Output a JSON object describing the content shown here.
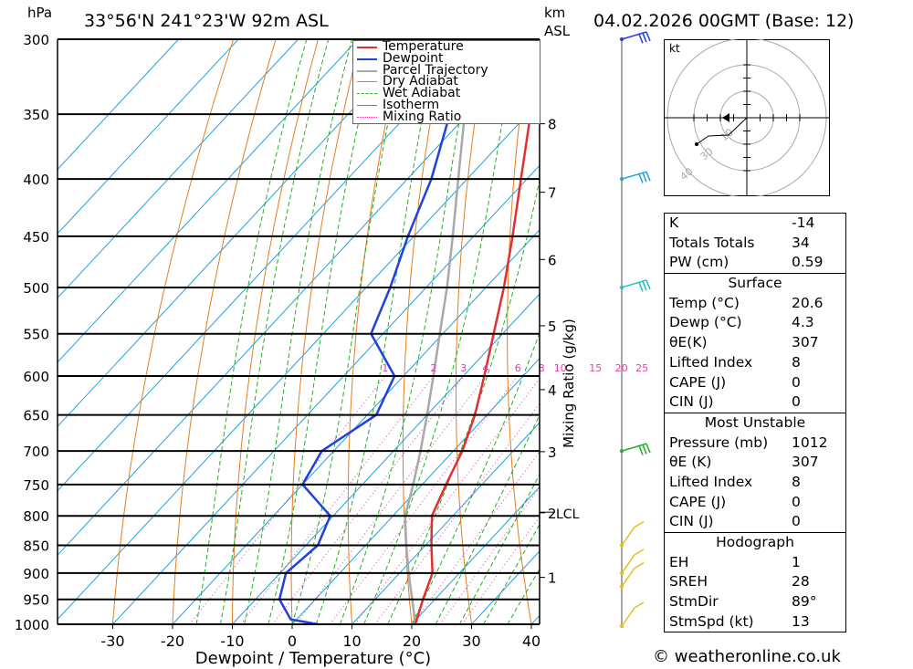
{
  "header": {
    "pressure_unit": "hPa",
    "location": "33°56'N  241°23'W  92m  ASL",
    "height_unit_line1": "km",
    "height_unit_line2": "ASL",
    "datetime": "04.02.2026  00GMT  (Base: 12)"
  },
  "chart_data": {
    "type": "line",
    "title": "33°56'N  241°23'W  92m  ASL",
    "xlabel": "Dewpoint / Temperature (°C)",
    "ylabel": "hPa",
    "right_label": "Mixing Ratio (g/kg)",
    "xlim": [
      -40,
      40
    ],
    "ylim": [
      1000,
      300
    ],
    "pressure_levels": [
      300,
      350,
      400,
      450,
      500,
      550,
      600,
      650,
      700,
      750,
      800,
      850,
      900,
      950,
      1000
    ],
    "x_ticks": [
      -30,
      -20,
      -10,
      0,
      10,
      20,
      30,
      40
    ],
    "height_km_ticks": [
      {
        "km": 1,
        "p": 908
      },
      {
        "km": 2,
        "p": 795
      },
      {
        "km": 3,
        "p": 701
      },
      {
        "km": 4,
        "p": 617
      },
      {
        "km": 5,
        "p": 541
      },
      {
        "km": 6,
        "p": 472
      },
      {
        "km": 7,
        "p": 411
      },
      {
        "km": 8,
        "p": 357
      }
    ],
    "lcl_label": "LCL",
    "lcl_pressure": 800,
    "mixing_ratio_labels": [
      "1",
      "2",
      "3",
      "4",
      "6",
      "8",
      "10",
      "15",
      "20",
      "25"
    ],
    "legend": [
      "Temperature",
      "Dewpoint",
      "Parcel Trajectory",
      "Dry Adiabat",
      "Wet Adiabat",
      "Isotherm",
      "Mixing Ratio"
    ],
    "series": [
      {
        "name": "Temperature",
        "color": "#e03030",
        "points": [
          [
            1000,
            20.6
          ],
          [
            950,
            18.0
          ],
          [
            900,
            15.5
          ],
          [
            850,
            11.0
          ],
          [
            800,
            6.5
          ],
          [
            750,
            4.0
          ],
          [
            700,
            1.5
          ],
          [
            650,
            -2.0
          ],
          [
            600,
            -6.5
          ],
          [
            550,
            -11.5
          ],
          [
            500,
            -17.0
          ],
          [
            450,
            -23.5
          ],
          [
            400,
            -31.0
          ],
          [
            350,
            -39.5
          ],
          [
            300,
            -48.5
          ]
        ]
      },
      {
        "name": "Dewpoint",
        "color": "#2040e0",
        "points": [
          [
            1000,
            4.3
          ],
          [
            990,
            -1.0
          ],
          [
            950,
            -6.0
          ],
          [
            900,
            -9.0
          ],
          [
            850,
            -8.0
          ],
          [
            800,
            -10.5
          ],
          [
            750,
            -20.0
          ],
          [
            700,
            -22.0
          ],
          [
            650,
            -18.5
          ],
          [
            600,
            -21.5
          ],
          [
            550,
            -32.0
          ],
          [
            500,
            -36.0
          ],
          [
            450,
            -41.0
          ],
          [
            400,
            -46.0
          ],
          [
            350,
            -53.0
          ],
          [
            300,
            -62.0
          ]
        ]
      },
      {
        "name": "Parcel Trajectory",
        "color": "#a8a8a8",
        "points": [
          [
            1000,
            20.6
          ],
          [
            950,
            16.2
          ],
          [
            900,
            11.5
          ],
          [
            850,
            6.8
          ],
          [
            800,
            2.0
          ],
          [
            750,
            -1.5
          ],
          [
            700,
            -5.5
          ],
          [
            650,
            -10.0
          ],
          [
            600,
            -15.0
          ],
          [
            550,
            -20.5
          ],
          [
            500,
            -26.5
          ],
          [
            450,
            -33.5
          ],
          [
            400,
            -41.5
          ],
          [
            350,
            -50.5
          ],
          [
            300,
            -60.0
          ]
        ]
      }
    ]
  },
  "hodograph": {
    "unit": "kt",
    "ring_labels": [
      "10",
      "20",
      "30",
      "40"
    ]
  },
  "indices": {
    "rows": [
      {
        "label": "K",
        "value": "-14"
      },
      {
        "label": "Totals Totals",
        "value": "34"
      },
      {
        "label": "PW (cm)",
        "value": "0.59"
      }
    ]
  },
  "surface": {
    "header": "Surface",
    "rows": [
      {
        "label": "Temp (°C)",
        "value": "20.6"
      },
      {
        "label": "Dewp (°C)",
        "value": "4.3"
      },
      {
        "label": "θE(K)",
        "value": "307"
      },
      {
        "label": "Lifted Index",
        "value": "8"
      },
      {
        "label": "CAPE (J)",
        "value": "0"
      },
      {
        "label": "CIN (J)",
        "value": "0"
      }
    ]
  },
  "most_unstable": {
    "header": "Most Unstable",
    "rows": [
      {
        "label": "Pressure (mb)",
        "value": "1012"
      },
      {
        "label": "θE (K)",
        "value": "307"
      },
      {
        "label": "Lifted Index",
        "value": "8"
      },
      {
        "label": "CAPE (J)",
        "value": "0"
      },
      {
        "label": "CIN (J)",
        "value": "0"
      }
    ]
  },
  "hodograph_table": {
    "header": "Hodograph",
    "rows": [
      {
        "label": "EH",
        "value": "1"
      },
      {
        "label": "SREH",
        "value": "28"
      },
      {
        "label": "StmDir",
        "value": "89°"
      },
      {
        "label": "StmSpd (kt)",
        "value": "13"
      }
    ]
  },
  "footer": {
    "copyright": "© weatheronline.co.uk"
  },
  "colors": {
    "temperature": "#e03030",
    "dewpoint": "#2040e0",
    "parcel": "#a8a8a8",
    "dry_adiabat": "#e08020",
    "wet_adiabat": "#20b020",
    "isotherm": "#20a0e0",
    "mixing_ratio": "#e040a0"
  }
}
